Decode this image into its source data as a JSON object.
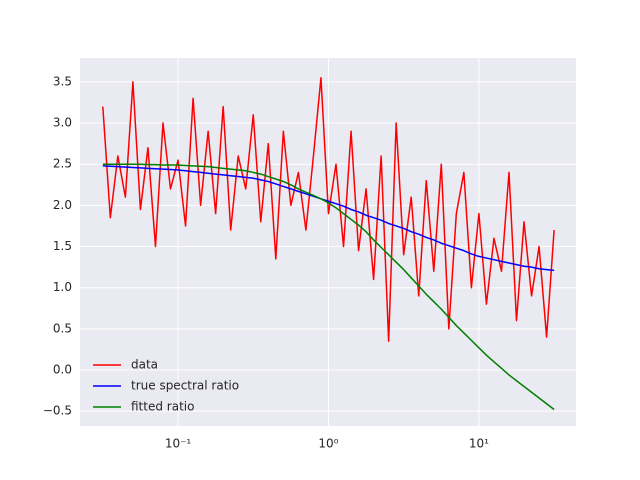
{
  "chart_data": {
    "type": "line",
    "xscale": "log",
    "grid": true,
    "legend": "lower left",
    "x": [
      0.03162,
      0.03548,
      0.03981,
      0.04467,
      0.05012,
      0.05623,
      0.0631,
      0.07079,
      0.07943,
      0.08913,
      0.1,
      0.1122,
      0.1259,
      0.1413,
      0.1585,
      0.1778,
      0.1995,
      0.2239,
      0.2512,
      0.2818,
      0.3162,
      0.3548,
      0.3981,
      0.4467,
      0.5012,
      0.5623,
      0.631,
      0.7079,
      0.7943,
      0.8913,
      1,
      1.122,
      1.259,
      1.413,
      1.585,
      1.778,
      1.995,
      2.239,
      2.512,
      2.818,
      3.162,
      3.548,
      3.981,
      4.467,
      5.012,
      5.623,
      6.31,
      7.079,
      7.943,
      8.913,
      10,
      11.22,
      12.59,
      14.13,
      15.85,
      17.78,
      19.95,
      22.39,
      25.12,
      28.18,
      31.62
    ],
    "series": [
      {
        "name": "data",
        "color": "#ff0000",
        "values": [
          3.2,
          1.85,
          2.6,
          2.1,
          3.5,
          1.95,
          2.7,
          1.5,
          3.0,
          2.2,
          2.55,
          1.75,
          3.3,
          2.0,
          2.9,
          1.9,
          3.2,
          1.7,
          2.6,
          2.2,
          3.1,
          1.8,
          2.75,
          1.35,
          2.9,
          2.0,
          2.4,
          1.7,
          2.6,
          3.55,
          1.9,
          2.5,
          1.5,
          2.9,
          1.45,
          2.2,
          1.1,
          2.6,
          0.35,
          3.0,
          1.4,
          2.1,
          0.9,
          2.3,
          1.2,
          2.5,
          0.5,
          1.9,
          2.4,
          1.0,
          1.9,
          0.8,
          1.6,
          1.2,
          2.4,
          0.6,
          1.8,
          0.9,
          1.5,
          0.4,
          1.7
        ]
      },
      {
        "name": "true spectral ratio",
        "color": "#0000ff",
        "values": [
          2.48,
          2.475,
          2.47,
          2.465,
          2.46,
          2.455,
          2.45,
          2.445,
          2.44,
          2.435,
          2.43,
          2.42,
          2.41,
          2.4,
          2.39,
          2.38,
          2.37,
          2.36,
          2.35,
          2.34,
          2.33,
          2.31,
          2.29,
          2.26,
          2.23,
          2.2,
          2.17,
          2.14,
          2.11,
          2.08,
          2.05,
          2.02,
          1.99,
          1.95,
          1.92,
          1.88,
          1.85,
          1.82,
          1.78,
          1.75,
          1.72,
          1.68,
          1.65,
          1.61,
          1.58,
          1.54,
          1.51,
          1.48,
          1.45,
          1.41,
          1.38,
          1.36,
          1.34,
          1.32,
          1.3,
          1.28,
          1.26,
          1.25,
          1.23,
          1.22,
          1.21
        ]
      },
      {
        "name": "fitted ratio",
        "color": "#008000",
        "values": [
          2.5,
          2.5,
          2.5,
          2.5,
          2.5,
          2.5,
          2.495,
          2.495,
          2.49,
          2.49,
          2.49,
          2.485,
          2.48,
          2.475,
          2.47,
          2.46,
          2.45,
          2.44,
          2.43,
          2.42,
          2.4,
          2.38,
          2.35,
          2.32,
          2.29,
          2.25,
          2.2,
          2.16,
          2.12,
          2.08,
          2.03,
          1.97,
          1.9,
          1.83,
          1.76,
          1.68,
          1.58,
          1.49,
          1.4,
          1.31,
          1.22,
          1.12,
          1.02,
          0.92,
          0.83,
          0.74,
          0.64,
          0.54,
          0.45,
          0.36,
          0.27,
          0.18,
          0.1,
          0.02,
          -0.06,
          -0.13,
          -0.2,
          -0.27,
          -0.34,
          -0.41,
          -0.48
        ]
      }
    ],
    "xlim": [
      0.0223,
      44.2
    ],
    "xticks": [
      {
        "value": 0.1,
        "label": "10⁻¹"
      },
      {
        "value": 1,
        "label": "10⁰"
      },
      {
        "value": 10,
        "label": "10¹"
      }
    ],
    "ylim": [
      -0.68,
      3.79
    ],
    "yticks": [
      {
        "value": -0.5,
        "label": "−0.5"
      },
      {
        "value": 0,
        "label": "0.0"
      },
      0.5,
      {
        "value": 1,
        "label": "1.0"
      },
      1.5,
      {
        "value": 2,
        "label": "2.0"
      },
      2.5,
      {
        "value": 3,
        "label": "3.0"
      },
      3.5
    ]
  }
}
